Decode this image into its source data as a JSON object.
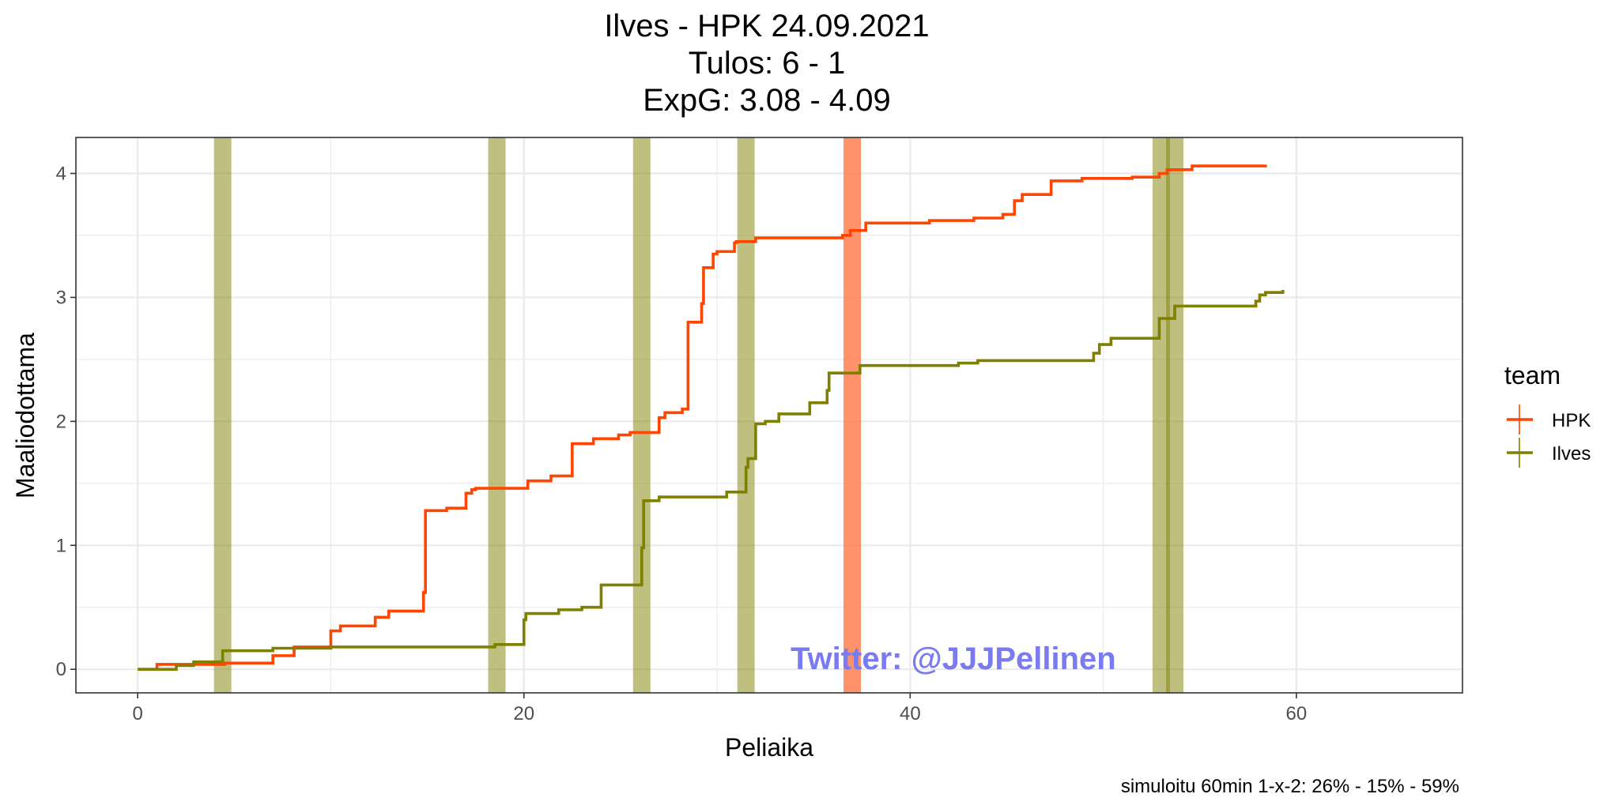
{
  "chart_data": {
    "type": "line",
    "title_lines": [
      "Ilves - HPK 24.09.2021",
      "Tulos: 6 - 1",
      "ExpG: 3.08 - 4.09"
    ],
    "xlabel": "Peliaika",
    "ylabel": "Maaliodottama",
    "xlim": [
      -3.2,
      68.6
    ],
    "ylim": [
      -0.19,
      4.29
    ],
    "x_ticks": [
      0,
      20,
      40,
      60
    ],
    "y_ticks": [
      0,
      1,
      2,
      3,
      4
    ],
    "grid": true,
    "legend": {
      "title": "team",
      "placement": "right",
      "entries": [
        "HPK",
        "Ilves"
      ]
    },
    "colors": {
      "HPK": "#ff4500",
      "Ilves": "#808000",
      "HPK_goal": "#ff7f50"
    },
    "series": [
      {
        "name": "HPK",
        "step": true,
        "points": [
          [
            0,
            0
          ],
          [
            1.0,
            0.04
          ],
          [
            3.0,
            0.04
          ],
          [
            4.5,
            0.05
          ],
          [
            5.3,
            0.05
          ],
          [
            7.0,
            0.11
          ],
          [
            8.1,
            0.18
          ],
          [
            10.0,
            0.31
          ],
          [
            10.5,
            0.35
          ],
          [
            12.3,
            0.42
          ],
          [
            13.0,
            0.47
          ],
          [
            14.8,
            0.62
          ],
          [
            14.9,
            1.28
          ],
          [
            16.0,
            1.3
          ],
          [
            17.0,
            1.42
          ],
          [
            17.3,
            1.45
          ],
          [
            17.5,
            1.46
          ],
          [
            20.2,
            1.52
          ],
          [
            21.4,
            1.56
          ],
          [
            22.5,
            1.82
          ],
          [
            23.6,
            1.86
          ],
          [
            24.9,
            1.89
          ],
          [
            25.5,
            1.91
          ],
          [
            27.0,
            2.03
          ],
          [
            27.3,
            2.07
          ],
          [
            28.2,
            2.1
          ],
          [
            28.5,
            2.8
          ],
          [
            29.2,
            2.95
          ],
          [
            29.3,
            3.24
          ],
          [
            29.8,
            3.35
          ],
          [
            30.0,
            3.37
          ],
          [
            30.9,
            3.44
          ],
          [
            31.0,
            3.45
          ],
          [
            32.0,
            3.48
          ],
          [
            36.5,
            3.5
          ],
          [
            36.9,
            3.54
          ],
          [
            37.7,
            3.6
          ],
          [
            41.0,
            3.62
          ],
          [
            43.3,
            3.64
          ],
          [
            44.8,
            3.67
          ],
          [
            45.4,
            3.78
          ],
          [
            45.8,
            3.83
          ],
          [
            47.3,
            3.94
          ],
          [
            48.5,
            3.94
          ],
          [
            48.9,
            3.96
          ],
          [
            51.5,
            3.97
          ],
          [
            52.9,
            4.0
          ],
          [
            53.3,
            4.03
          ],
          [
            54.6,
            4.06
          ],
          [
            58.4,
            4.07
          ]
        ]
      },
      {
        "name": "Ilves",
        "step": true,
        "points": [
          [
            0,
            0
          ],
          [
            2.0,
            0.03
          ],
          [
            2.9,
            0.06
          ],
          [
            4.4,
            0.15
          ],
          [
            7.0,
            0.17
          ],
          [
            10.0,
            0.18
          ],
          [
            18.5,
            0.2
          ],
          [
            20.0,
            0.4
          ],
          [
            20.1,
            0.45
          ],
          [
            21.8,
            0.48
          ],
          [
            23.0,
            0.5
          ],
          [
            24.0,
            0.68
          ],
          [
            25.1,
            0.68
          ],
          [
            26.1,
            0.98
          ],
          [
            26.2,
            1.36
          ],
          [
            27.0,
            1.39
          ],
          [
            30.5,
            1.43
          ],
          [
            31.5,
            1.63
          ],
          [
            31.6,
            1.7
          ],
          [
            32.0,
            1.98
          ],
          [
            32.5,
            2.0
          ],
          [
            33.2,
            2.06
          ],
          [
            34.8,
            2.15
          ],
          [
            35.7,
            2.25
          ],
          [
            35.8,
            2.39
          ],
          [
            37.4,
            2.45
          ],
          [
            42.5,
            2.47
          ],
          [
            43.5,
            2.49
          ],
          [
            49.5,
            2.55
          ],
          [
            49.8,
            2.62
          ],
          [
            50.4,
            2.67
          ],
          [
            52.9,
            2.83
          ],
          [
            53.7,
            2.93
          ],
          [
            57.9,
            2.97
          ],
          [
            58.1,
            3.02
          ],
          [
            58.4,
            3.04
          ],
          [
            59.3,
            3.06
          ]
        ]
      }
    ],
    "goals": [
      {
        "team": "Ilves",
        "time": 4.4
      },
      {
        "team": "Ilves",
        "time": 18.6
      },
      {
        "team": "Ilves",
        "time": 26.1
      },
      {
        "team": "Ilves",
        "time": 31.5
      },
      {
        "team": "HPK",
        "time": 37.0
      },
      {
        "team": "Ilves",
        "time": 53.0
      },
      {
        "team": "Ilves",
        "time": 53.7
      }
    ],
    "watermark": "Twitter: @JJJPellinen",
    "caption": "simuloitu 60min 1-x-2:  26% - 15% - 59%"
  }
}
